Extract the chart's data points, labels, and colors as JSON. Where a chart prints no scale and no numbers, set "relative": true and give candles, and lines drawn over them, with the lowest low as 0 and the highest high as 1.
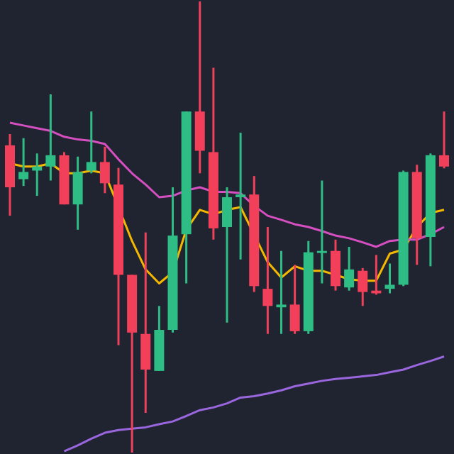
{
  "chart_data": {
    "type": "candlestick",
    "relative": true,
    "categories": [
      null,
      null,
      null,
      null,
      null,
      null,
      null,
      null,
      null,
      null,
      null,
      null,
      null,
      null,
      null,
      null,
      null,
      null,
      null,
      null,
      null,
      null,
      null,
      null,
      null,
      null,
      null,
      null,
      null,
      null,
      null,
      null,
      null
    ],
    "ohlc": [
      [
        0.681,
        0.706,
        0.525,
        0.588
      ],
      [
        0.606,
        0.697,
        0.591,
        0.622
      ],
      [
        0.625,
        0.663,
        0.569,
        0.634
      ],
      [
        0.634,
        0.794,
        0.603,
        0.659
      ],
      [
        0.659,
        0.666,
        0.55,
        0.55
      ],
      [
        0.55,
        0.656,
        0.494,
        0.622
      ],
      [
        0.625,
        0.756,
        0.619,
        0.644
      ],
      [
        0.644,
        0.678,
        0.575,
        0.597
      ],
      [
        0.594,
        0.631,
        0.238,
        0.394
      ],
      [
        0.394,
        0.394,
        0,
        0.266
      ],
      [
        0.263,
        0.488,
        0.088,
        0.184
      ],
      [
        0.181,
        0.325,
        0.181,
        0.272
      ],
      [
        0.272,
        0.588,
        0.266,
        0.481
      ],
      [
        0.484,
        0.756,
        0.375,
        0.756
      ],
      [
        0.756,
        1,
        0.619,
        0.669
      ],
      [
        0.666,
        0.853,
        0.472,
        0.497
      ],
      [
        0.5,
        0.588,
        0.288,
        0.566
      ],
      [
        0.566,
        0.709,
        0.428,
        0.572
      ],
      [
        0.572,
        0.613,
        0.356,
        0.369
      ],
      [
        0.363,
        0.5,
        0.263,
        0.325
      ],
      [
        0.322,
        0.447,
        0.263,
        0.328
      ],
      [
        0.328,
        0.416,
        0.263,
        0.269
      ],
      [
        0.269,
        0.469,
        0.263,
        0.444
      ],
      [
        0.444,
        0.603,
        0.375,
        0.447
      ],
      [
        0.447,
        0.472,
        0.359,
        0.369
      ],
      [
        0.366,
        0.456,
        0.359,
        0.406
      ],
      [
        0.403,
        0.409,
        0.325,
        0.356
      ],
      [
        0.359,
        0.438,
        0.35,
        0.353
      ],
      [
        0.363,
        0.419,
        0.353,
        0.372
      ],
      [
        0.372,
        0.625,
        0.369,
        0.622
      ],
      [
        0.622,
        0.638,
        0.416,
        0.475
      ],
      [
        0.478,
        0.663,
        0.413,
        0.659
      ],
      [
        0.659,
        0.756,
        0.63,
        0.634
      ]
    ],
    "colors": [
      "#f23f5a",
      "#2ebd85",
      "#2ebd85",
      "#2ebd85",
      "#f23f5a",
      "#2ebd85",
      "#2ebd85",
      "#f23f5a",
      "#f23f5a",
      "#f23f5a",
      "#f23f5a",
      "#2ebd85",
      "#2ebd85",
      "#2ebd85",
      "#f23f5a",
      "#f23f5a",
      "#2ebd85",
      "#2ebd85",
      "#f23f5a",
      "#f23f5a",
      "#2ebd85",
      "#f23f5a",
      "#2ebd85",
      "#2ebd85",
      "#f23f5a",
      "#2ebd85",
      "#f23f5a",
      "#f23f5a",
      "#2ebd85",
      "#2ebd85",
      "#f23f5a",
      "#2ebd85",
      "#f23f5a"
    ],
    "series": [
      {
        "type": "line",
        "color": "#f5b800",
        "values": [
          0.641,
          0.634,
          0.634,
          0.641,
          0.619,
          0.619,
          0.625,
          0.619,
          null,
          0.469,
          0.406,
          0.375,
          0.4,
          0.494,
          0.538,
          0.528,
          0.538,
          0.544,
          null,
          0.422,
          0.388,
          0.413,
          0.403,
          0.403,
          0.394,
          0.384,
          0.381,
          0.381,
          0.441,
          0.45,
          0.5,
          0.531,
          0.538
        ]
      },
      {
        "type": "line",
        "color": "#d64fc0",
        "values": [
          0.731,
          0.725,
          0.719,
          0.713,
          0.7,
          0.694,
          0.691,
          0.684,
          0.65,
          0.619,
          0.594,
          0.566,
          0.569,
          0.581,
          0.588,
          0.578,
          0.578,
          0.575,
          0.547,
          0.525,
          0.516,
          0.506,
          0.5,
          0.491,
          0.481,
          0.475,
          0.466,
          0.456,
          0.469,
          0.472,
          0.472,
          0.484,
          0.5
        ]
      },
      {
        "type": "line",
        "color": "#9966dd",
        "values": [
          null,
          null,
          null,
          null,
          0.003,
          0.016,
          0.031,
          0.044,
          0.05,
          0.053,
          0.056,
          0.063,
          0.069,
          0.081,
          0.094,
          0.1,
          0.109,
          0.122,
          0.125,
          0.131,
          0.138,
          0.147,
          0.153,
          0.159,
          0.163,
          0.166,
          0.169,
          0.172,
          0.178,
          0.184,
          0.194,
          0.203,
          0.213
        ]
      }
    ]
  }
}
